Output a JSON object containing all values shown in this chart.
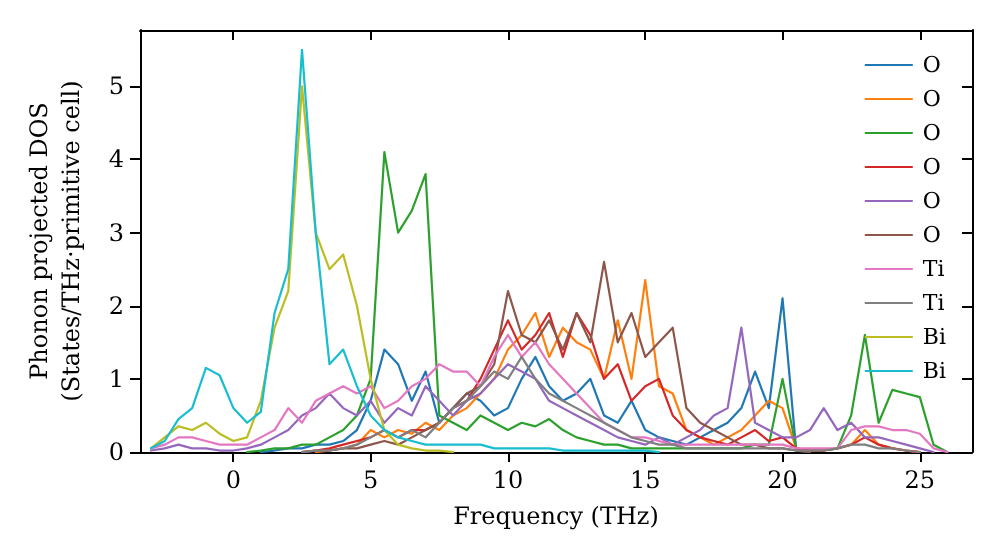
{
  "chart_data": {
    "type": "line",
    "xlabel": "Frequency (THz)",
    "ylabel": "Phonon projected DOS\n(States/THz·primitive cell)",
    "x": [
      -3,
      -2.5,
      -2,
      -1.5,
      -1,
      -0.5,
      0,
      0.5,
      1,
      1.5,
      2,
      2.5,
      3,
      3.5,
      4,
      4.5,
      5,
      5.5,
      6,
      6.5,
      7,
      7.5,
      8,
      8.5,
      9,
      9.5,
      10,
      10.5,
      11,
      11.5,
      12,
      12.5,
      13,
      13.5,
      14,
      14.5,
      15,
      15.5,
      16,
      16.5,
      17,
      17.5,
      18,
      18.5,
      19,
      19.5,
      20,
      20.5,
      21,
      21.5,
      22,
      22.5,
      23,
      23.5,
      24,
      24.5,
      25,
      25.5,
      26
    ],
    "series": [
      {
        "name": "O",
        "color": "#1f77b4",
        "values": [
          null,
          null,
          null,
          null,
          null,
          null,
          null,
          null,
          0,
          0.02,
          0.05,
          0.05,
          0.1,
          0.1,
          0.15,
          0.3,
          0.7,
          1.4,
          1.2,
          0.7,
          1.1,
          0.4,
          0.6,
          0.8,
          0.7,
          0.5,
          0.6,
          1.0,
          1.3,
          0.9,
          0.7,
          0.8,
          1.0,
          0.5,
          0.4,
          0.7,
          0.3,
          0.2,
          0.15,
          0.1,
          0.2,
          0.3,
          0.4,
          0.6,
          1.1,
          0.6,
          2.1,
          0.02,
          0,
          null,
          null,
          null,
          null,
          null,
          null,
          null,
          null,
          null,
          null
        ]
      },
      {
        "name": "O",
        "color": "#ff7f0e",
        "values": [
          null,
          null,
          null,
          null,
          null,
          null,
          null,
          null,
          null,
          null,
          null,
          null,
          0,
          0.02,
          0.05,
          0.1,
          0.3,
          0.2,
          0.3,
          0.25,
          0.4,
          0.3,
          0.5,
          0.6,
          0.8,
          1.0,
          1.4,
          1.6,
          1.9,
          1.3,
          1.7,
          1.5,
          1.4,
          1.0,
          1.8,
          1.0,
          2.35,
          0.9,
          0.8,
          0.3,
          0.2,
          0.1,
          0.2,
          0.3,
          0.5,
          0.7,
          0.6,
          0.05,
          0.02,
          0.02,
          0.05,
          0.1,
          0.3,
          0.1,
          0.05,
          0.02,
          0,
          null,
          null
        ]
      },
      {
        "name": "O",
        "color": "#2ca02c",
        "values": [
          null,
          null,
          null,
          null,
          null,
          null,
          null,
          0,
          0.02,
          0.05,
          0.05,
          0.1,
          0.1,
          0.2,
          0.3,
          0.5,
          1.0,
          4.1,
          3.0,
          3.3,
          3.8,
          0.5,
          0.4,
          0.3,
          0.5,
          0.4,
          0.3,
          0.4,
          0.35,
          0.45,
          0.3,
          0.2,
          0.15,
          0.1,
          0.1,
          0.05,
          0.05,
          0.05,
          0.05,
          0.05,
          0.05,
          0.05,
          0.05,
          0.05,
          0.1,
          0.1,
          1.0,
          0.05,
          0.02,
          0.02,
          0.05,
          0.5,
          1.6,
          0.4,
          0.85,
          0.8,
          0.75,
          0.1,
          0
        ]
      },
      {
        "name": "O",
        "color": "#d62728",
        "values": [
          null,
          null,
          null,
          null,
          null,
          null,
          null,
          null,
          null,
          null,
          null,
          0,
          0.02,
          0.05,
          0.1,
          0.15,
          0.2,
          0.3,
          0.2,
          0.3,
          0.3,
          0.4,
          0.6,
          0.7,
          1.0,
          1.4,
          1.8,
          1.4,
          1.6,
          1.9,
          1.3,
          1.9,
          1.6,
          1.0,
          1.2,
          0.7,
          0.9,
          1.0,
          0.5,
          0.3,
          0.2,
          0.15,
          0.1,
          0.2,
          0.3,
          0.15,
          0.2,
          0.05,
          0.02,
          0.02,
          0.05,
          0.1,
          0.2,
          0.1,
          0.05,
          0.02,
          0,
          null,
          null
        ]
      },
      {
        "name": "O",
        "color": "#9467bd",
        "values": [
          0.02,
          0.05,
          0.1,
          0.05,
          0.05,
          0.02,
          0.02,
          0.05,
          0.1,
          0.2,
          0.3,
          0.5,
          0.6,
          0.8,
          0.6,
          0.5,
          0.7,
          0.4,
          0.6,
          0.5,
          0.9,
          0.7,
          0.5,
          0.7,
          0.8,
          1.0,
          1.2,
          1.1,
          1.0,
          0.7,
          0.6,
          0.5,
          0.4,
          0.3,
          0.2,
          0.15,
          0.1,
          0.2,
          0.1,
          0.2,
          0.3,
          0.5,
          0.6,
          1.7,
          0.4,
          0.3,
          0.2,
          0.2,
          0.3,
          0.6,
          0.3,
          0.4,
          0.2,
          0.2,
          0.15,
          0.1,
          0.05,
          0,
          null
        ]
      },
      {
        "name": "O",
        "color": "#8c564b",
        "values": [
          null,
          null,
          null,
          null,
          null,
          null,
          null,
          null,
          null,
          null,
          null,
          0,
          0.02,
          0.02,
          0.05,
          0.05,
          0.1,
          0.15,
          0.1,
          0.2,
          0.3,
          0.4,
          0.6,
          0.8,
          0.9,
          1.2,
          2.2,
          1.6,
          1.5,
          1.8,
          1.4,
          1.9,
          1.5,
          2.6,
          1.5,
          1.9,
          1.3,
          1.5,
          1.7,
          0.6,
          0.4,
          0.3,
          0.2,
          0.1,
          0.1,
          0.05,
          0.05,
          0.02,
          0,
          null,
          null,
          null,
          null,
          null,
          null,
          null,
          null,
          null,
          null
        ]
      },
      {
        "name": "Ti",
        "color": "#e377c2",
        "values": [
          0.05,
          0.1,
          0.2,
          0.2,
          0.15,
          0.1,
          0.1,
          0.1,
          0.2,
          0.3,
          0.6,
          0.4,
          0.7,
          0.8,
          0.9,
          0.8,
          0.9,
          0.6,
          0.7,
          0.9,
          1.0,
          1.2,
          1.1,
          1.1,
          0.9,
          1.3,
          1.6,
          1.3,
          1.5,
          1.2,
          1.0,
          0.8,
          0.6,
          0.4,
          0.3,
          0.2,
          0.2,
          0.15,
          0.1,
          0.1,
          0.1,
          0.1,
          0.1,
          0.1,
          0.1,
          0.1,
          0.1,
          0.05,
          0.05,
          0.05,
          0.05,
          0.3,
          0.35,
          0.35,
          0.3,
          0.3,
          0.25,
          0.05,
          0
        ]
      },
      {
        "name": "Ti",
        "color": "#7f7f7f",
        "values": [
          null,
          null,
          null,
          null,
          null,
          null,
          null,
          null,
          null,
          null,
          null,
          0,
          0.02,
          0.02,
          0.05,
          0.1,
          0.2,
          0.3,
          0.2,
          0.3,
          0.2,
          0.4,
          0.6,
          0.7,
          0.9,
          1.1,
          1.0,
          1.3,
          1.0,
          0.8,
          0.7,
          0.6,
          0.5,
          0.4,
          0.3,
          0.2,
          0.15,
          0.1,
          0.1,
          0.05,
          0.05,
          0.05,
          0.05,
          0.05,
          0.05,
          0.05,
          0.05,
          0.02,
          0.02,
          0.02,
          0.05,
          0.1,
          0.1,
          0.05,
          0.05,
          0.02,
          0,
          null,
          null
        ]
      },
      {
        "name": "Bi",
        "color": "#bcbd22",
        "values": [
          0.05,
          0.2,
          0.35,
          0.3,
          0.4,
          0.25,
          0.15,
          0.2,
          0.7,
          1.7,
          2.2,
          5.0,
          3.0,
          2.5,
          2.7,
          2.0,
          1.0,
          0.3,
          0.1,
          0.05,
          0.02,
          0.02,
          0,
          null,
          null,
          null,
          null,
          null,
          null,
          null,
          null,
          null,
          null,
          null,
          null,
          null,
          null,
          null,
          null,
          null,
          null,
          null,
          null,
          null,
          null,
          null,
          null,
          null,
          null,
          null,
          null,
          null,
          null,
          null,
          null,
          null,
          null,
          null,
          null
        ]
      },
      {
        "name": "Bi",
        "color": "#17becf",
        "values": [
          0.05,
          0.15,
          0.45,
          0.6,
          1.15,
          1.05,
          0.6,
          0.4,
          0.55,
          1.9,
          2.5,
          5.5,
          3.0,
          1.2,
          1.4,
          0.9,
          0.5,
          0.3,
          0.2,
          0.15,
          0.1,
          0.1,
          0.1,
          0.1,
          0.1,
          0.05,
          0.05,
          0.05,
          0.05,
          0.05,
          0.02,
          0.02,
          0.02,
          0.02,
          0.02,
          0.02,
          0.02,
          0,
          null,
          null,
          null,
          null,
          null,
          null,
          null,
          null,
          null,
          null,
          null,
          null,
          null,
          null,
          null,
          null,
          null,
          null,
          null,
          null,
          null
        ]
      }
    ],
    "xlim": [
      -3.4,
      26.9
    ],
    "xticks": [
      0,
      5,
      10,
      15,
      20,
      25
    ],
    "ylim": [
      0,
      5.77
    ],
    "yticks": [
      0,
      1,
      2,
      3,
      4,
      5
    ],
    "grid": false,
    "legend": "top right",
    "marker": "none",
    "line_style": "solid"
  }
}
